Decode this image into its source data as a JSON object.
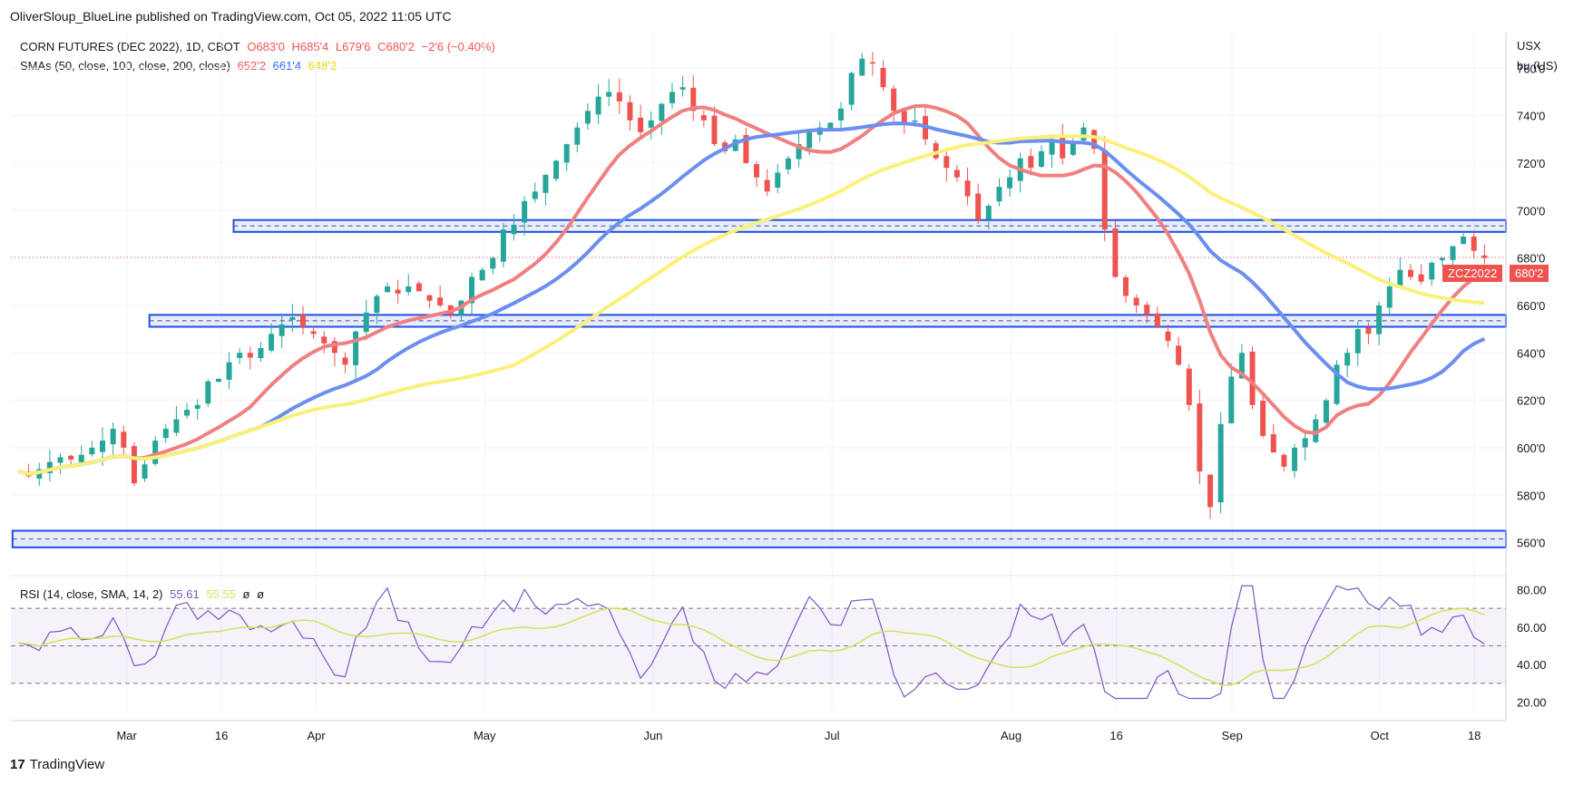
{
  "header": {
    "publisher_line": "OliverSloup_BlueLine published on TradingView.com, Oct 05, 2022 11:05 UTC"
  },
  "legend": {
    "instrument": "CORN FUTURES (DEC 2022), 1D, CBOT",
    "open": "O683'0",
    "high": "H685'4",
    "low": "L679'6",
    "close": "C680'2",
    "change": "−2'6 (−0.40%)",
    "sma_label": "SMAs (50, close, 100, close, 200, close)",
    "sma50": "652'2",
    "sma100": "661'4",
    "sma200": "648'2",
    "rsi_label": "RSI (14, close, SMA, 14, 2)",
    "rsi_value": "55.61",
    "rsi_sma": "55.55",
    "rsi_extra1": "ø",
    "rsi_extra2": "ø"
  },
  "axis": {
    "unit1": "USX",
    "unit2": "bu (US)"
  },
  "price_tags": {
    "symbol": "ZCZ2022",
    "last": "680'2"
  },
  "footer": {
    "brand": "TradingView",
    "logo": "17"
  },
  "colors": {
    "up": "#26a69a",
    "down": "#ef5350",
    "sma50": "#f08080",
    "sma100": "#6b8ff0",
    "sma200": "#faf07a",
    "zone": "#1e4fe0",
    "rsi": "#7e57c2",
    "rsi_sma": "#d4e157"
  },
  "chart_data": {
    "type": "candlestick",
    "price_axis": {
      "min": 548,
      "max": 775,
      "ticks": [
        "560'0",
        "580'0",
        "600'0",
        "620'0",
        "640'0",
        "660'0",
        "680'0",
        "700'0",
        "720'0",
        "740'0",
        "760'0"
      ],
      "tick_values": [
        560,
        580,
        600,
        620,
        640,
        660,
        680,
        700,
        720,
        740,
        760
      ]
    },
    "time_axis": {
      "labels": [
        "Mar",
        "16",
        "Apr",
        "May",
        "Jun",
        "Jul",
        "Aug",
        "16",
        "Sep",
        "Oct",
        "18"
      ],
      "label_index": [
        10.5,
        19.5,
        28.5,
        44.5,
        60.5,
        77.5,
        94.5,
        104.5,
        115.5,
        129.5,
        138.5
      ],
      "bars_total": 142
    },
    "zones": [
      {
        "low": 691,
        "high": 696,
        "dash": 693.5,
        "from_index": 21
      },
      {
        "low": 651,
        "high": 656,
        "dash": 653.5,
        "from_index": 13
      },
      {
        "low": 558,
        "high": 565,
        "dash": 561.5,
        "from_index": 0
      }
    ],
    "last_price": 680.25,
    "ohlc_close_series": [
      590,
      588,
      591,
      594,
      596,
      595,
      597,
      600,
      603,
      608,
      600,
      585,
      593,
      603,
      608,
      612,
      616,
      618,
      628,
      629,
      636,
      640,
      638,
      642,
      648,
      652,
      655,
      651,
      648,
      644,
      640,
      635,
      649,
      657,
      664,
      668,
      665,
      668,
      666,
      662,
      660,
      656,
      662,
      672,
      675,
      680,
      692,
      694,
      704,
      708,
      715,
      721,
      728,
      735,
      742,
      748,
      750,
      746,
      738,
      733,
      738,
      745,
      750,
      752,
      742,
      738,
      728,
      725,
      730,
      720,
      714,
      708,
      716,
      722,
      728,
      733,
      735,
      737,
      743,
      758,
      764,
      762,
      752,
      742,
      736,
      738,
      730,
      722,
      718,
      714,
      706,
      696,
      702,
      710,
      714,
      722,
      718,
      725,
      730,
      722,
      728,
      735,
      726,
      692,
      672,
      664,
      660,
      656,
      651,
      645,
      635,
      618,
      590,
      575,
      610,
      630,
      640,
      618,
      605,
      598,
      592,
      600,
      604,
      612,
      620,
      635,
      640,
      650,
      648,
      660,
      668,
      675,
      672,
      670,
      678,
      680,
      685,
      689,
      683,
      680
    ],
    "rsi_axis": {
      "min": 15,
      "max": 85,
      "ticks": [
        "20.00",
        "40.00",
        "60.00",
        "80.00"
      ],
      "tick_values": [
        20,
        40,
        60,
        80
      ],
      "bands": [
        30,
        50,
        70
      ]
    }
  }
}
